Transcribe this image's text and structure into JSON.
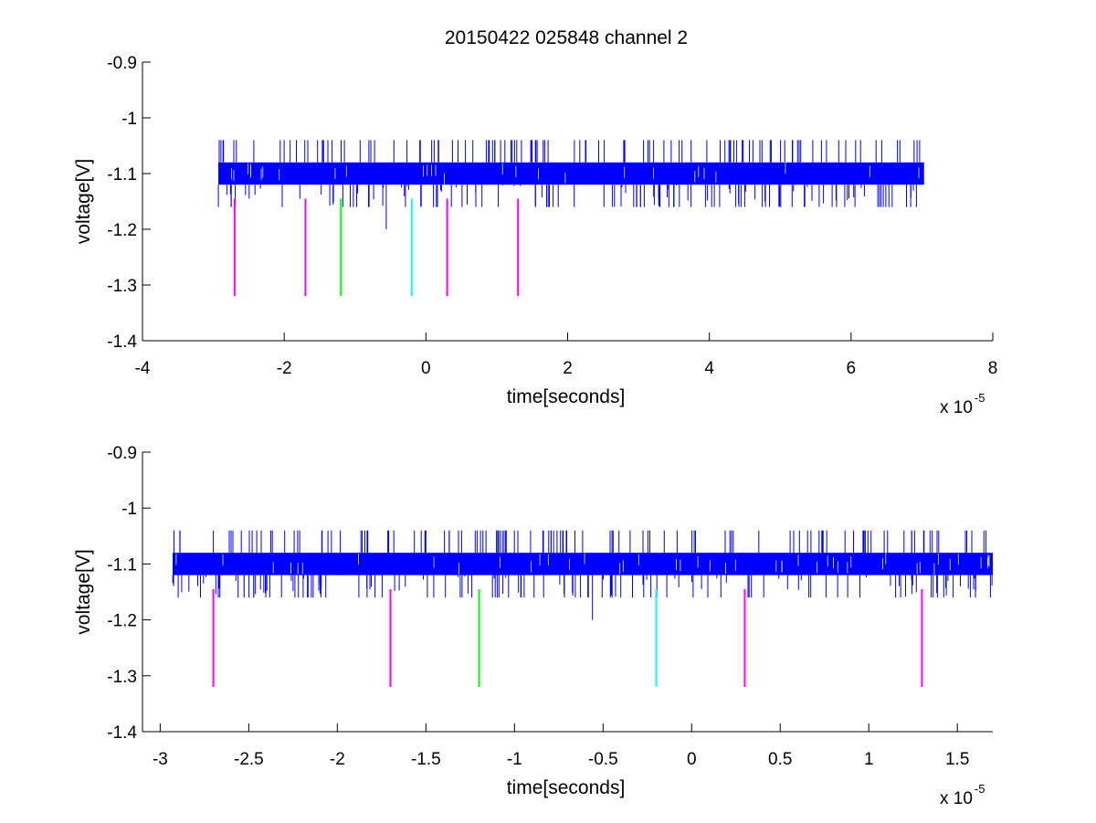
{
  "figure": {
    "title": "20150422 025848 channel 2"
  },
  "chart_data": [
    {
      "type": "line",
      "xlabel": "time[seconds]",
      "ylabel": "voltage[V]",
      "x_exponent_base": "x 10",
      "x_exponent_power": "-5",
      "xlim": [
        -4e-05,
        8e-05
      ],
      "ylim": [
        -1.4,
        -0.9
      ],
      "x_ticks": [
        -4e-05,
        -2e-05,
        0,
        2e-05,
        4e-05,
        6e-05,
        8e-05
      ],
      "x_tick_labels": [
        "-4",
        "-2",
        "0",
        "2",
        "4",
        "6",
        "8"
      ],
      "y_ticks": [
        -0.9,
        -1.0,
        -1.1,
        -1.2,
        -1.3,
        -1.4
      ],
      "y_tick_labels": [
        "-0.9",
        "-1",
        "-1.1",
        "-1.2",
        "-1.3",
        "-1.4"
      ],
      "grid": false,
      "series": [
        {
          "color": "#0000ff",
          "x_range": [
            -2.93e-05,
            7.03e-05
          ],
          "y_band_low": -1.12,
          "y_band_high": -1.08,
          "y_spike_max": -1.04,
          "y_spike_min": -1.16,
          "y_outlier_min": -1.2
        }
      ],
      "markers": [
        {
          "x": -2.7e-05,
          "y_top": -1.145,
          "y_bottom": -1.32,
          "color": "#ff00ff"
        },
        {
          "x": -1.7e-05,
          "y_top": -1.145,
          "y_bottom": -1.32,
          "color": "#ff00ff"
        },
        {
          "x": -1.2e-05,
          "y_top": -1.145,
          "y_bottom": -1.32,
          "color": "#00ff00"
        },
        {
          "x": -2e-06,
          "y_top": -1.145,
          "y_bottom": -1.32,
          "color": "#00ffff"
        },
        {
          "x": 3e-06,
          "y_top": -1.145,
          "y_bottom": -1.32,
          "color": "#ff00ff"
        },
        {
          "x": 1.3e-05,
          "y_top": -1.145,
          "y_bottom": -1.32,
          "color": "#ff00ff"
        }
      ]
    },
    {
      "type": "line",
      "xlabel": "time[seconds]",
      "ylabel": "voltage[V]",
      "x_exponent_base": "x 10",
      "x_exponent_power": "-5",
      "xlim": [
        -3.1e-05,
        1.7e-05
      ],
      "ylim": [
        -1.4,
        -0.9
      ],
      "x_ticks": [
        -3e-05,
        -2.5e-05,
        -2e-05,
        -1.5e-05,
        -1e-05,
        -5e-06,
        0,
        5e-06,
        1e-05,
        1.5e-05
      ],
      "x_tick_labels": [
        "-3",
        "-2.5",
        "-2",
        "-1.5",
        "-1",
        "-0.5",
        "0",
        "0.5",
        "1",
        "1.5"
      ],
      "y_ticks": [
        -0.9,
        -1.0,
        -1.1,
        -1.2,
        -1.3,
        -1.4
      ],
      "y_tick_labels": [
        "-0.9",
        "-1",
        "-1.1",
        "-1.2",
        "-1.3",
        "-1.4"
      ],
      "grid": false,
      "series": [
        {
          "color": "#0000ff",
          "x_range": [
            -2.93e-05,
            1.7e-05
          ],
          "y_band_low": -1.12,
          "y_band_high": -1.08,
          "y_spike_max": -1.04,
          "y_spike_min": -1.16,
          "y_outlier_min": -1.2
        }
      ],
      "markers": [
        {
          "x": -2.7e-05,
          "y_top": -1.145,
          "y_bottom": -1.32,
          "color": "#ff00ff"
        },
        {
          "x": -1.7e-05,
          "y_top": -1.145,
          "y_bottom": -1.32,
          "color": "#ff00ff"
        },
        {
          "x": -1.2e-05,
          "y_top": -1.145,
          "y_bottom": -1.32,
          "color": "#00ff00"
        },
        {
          "x": -2e-06,
          "y_top": -1.145,
          "y_bottom": -1.32,
          "color": "#00ffff"
        },
        {
          "x": 3e-06,
          "y_top": -1.145,
          "y_bottom": -1.32,
          "color": "#ff00ff"
        },
        {
          "x": 1.3e-05,
          "y_top": -1.145,
          "y_bottom": -1.32,
          "color": "#ff00ff"
        }
      ]
    }
  ]
}
